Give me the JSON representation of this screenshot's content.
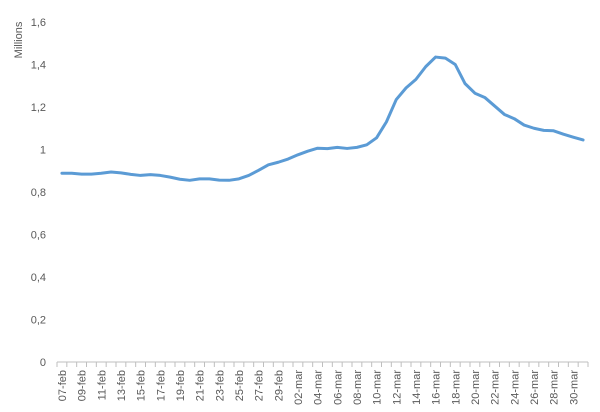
{
  "chart_data": {
    "type": "line",
    "title": "",
    "xlabel": "",
    "ylabel": "Millions",
    "ylim": [
      0,
      1.6
    ],
    "y_ticks": [
      "0",
      "0,2",
      "0,4",
      "0,6",
      "0,8",
      "1",
      "1,2",
      "1,4",
      "1,6"
    ],
    "y_tick_values": [
      0,
      0.2,
      0.4,
      0.6,
      0.8,
      1.0,
      1.2,
      1.4,
      1.6
    ],
    "grid": false,
    "legend": "none",
    "series_color": "#5b9bd5",
    "x_tick_labels": [
      "07-feb",
      "09-feb",
      "11-feb",
      "13-feb",
      "15-feb",
      "17-feb",
      "19-feb",
      "21-feb",
      "23-feb",
      "25-feb",
      "27-feb",
      "29-feb",
      "02-mar",
      "04-mar",
      "06-mar",
      "08-mar",
      "10-mar",
      "12-mar",
      "14-mar",
      "16-mar",
      "18-mar",
      "20-mar",
      "22-mar",
      "24-mar",
      "26-mar",
      "28-mar",
      "30-mar"
    ],
    "x": [
      "07-feb",
      "08-feb",
      "09-feb",
      "10-feb",
      "11-feb",
      "12-feb",
      "13-feb",
      "14-feb",
      "15-feb",
      "16-feb",
      "17-feb",
      "18-feb",
      "19-feb",
      "20-feb",
      "21-feb",
      "22-feb",
      "23-feb",
      "24-feb",
      "25-feb",
      "26-feb",
      "27-feb",
      "28-feb",
      "29-feb",
      "01-mar",
      "02-mar",
      "03-mar",
      "04-mar",
      "05-mar",
      "06-mar",
      "07-mar",
      "08-mar",
      "09-mar",
      "10-mar",
      "11-mar",
      "12-mar",
      "13-mar",
      "14-mar",
      "15-mar",
      "16-mar",
      "17-mar",
      "18-mar",
      "19-mar",
      "20-mar",
      "21-mar",
      "22-mar",
      "23-mar",
      "24-mar",
      "25-mar",
      "26-mar",
      "27-mar",
      "28-mar",
      "29-mar",
      "30-mar",
      "31-mar"
    ],
    "series": [
      {
        "values": [
          0.888,
          0.888,
          0.884,
          0.884,
          0.888,
          0.894,
          0.89,
          0.883,
          0.878,
          0.882,
          0.878,
          0.87,
          0.86,
          0.855,
          0.862,
          0.862,
          0.856,
          0.855,
          0.862,
          0.878,
          0.902,
          0.928,
          0.94,
          0.955,
          0.975,
          0.992,
          1.006,
          1.004,
          1.01,
          1.005,
          1.01,
          1.022,
          1.055,
          1.13,
          1.235,
          1.29,
          1.33,
          1.39,
          1.435,
          1.43,
          1.4,
          1.31,
          1.265,
          1.245,
          1.205,
          1.165,
          1.145,
          1.115,
          1.1,
          1.09,
          1.088,
          1.072,
          1.058,
          1.045
        ]
      }
    ]
  }
}
